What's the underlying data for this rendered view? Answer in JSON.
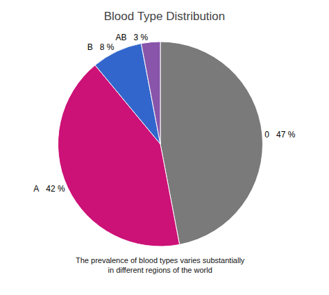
{
  "chart_data": {
    "type": "pie",
    "title": "Blood Type Distribution",
    "subtitle": "The prevalence of blood types varies substantially\nin different regions of the world",
    "categories": [
      "0",
      "A",
      "B",
      "AB"
    ],
    "values": [
      47,
      42,
      8,
      3
    ],
    "value_labels": [
      "0   47 %",
      "A   42 %",
      "B   8 %",
      "AB   3 %"
    ],
    "colors": [
      "#7a7a7a",
      "#cc1177",
      "#3366cc",
      "#8855aa"
    ],
    "data_labels": true
  }
}
